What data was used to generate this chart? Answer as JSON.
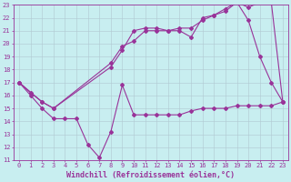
{
  "xlabel": "Windchill (Refroidissement éolien,°C)",
  "bg_color": "#c8eef0",
  "grid_color": "#b0c8d0",
  "line_color": "#993399",
  "xlim": [
    -0.5,
    23.5
  ],
  "ylim": [
    11,
    23
  ],
  "xticks": [
    0,
    1,
    2,
    3,
    4,
    5,
    6,
    7,
    8,
    9,
    10,
    11,
    12,
    13,
    14,
    15,
    16,
    17,
    18,
    19,
    20,
    21,
    22,
    23
  ],
  "yticks": [
    11,
    12,
    13,
    14,
    15,
    16,
    17,
    18,
    19,
    20,
    21,
    22,
    23
  ],
  "line1_x": [
    0,
    1,
    2,
    3,
    4,
    5,
    6,
    7,
    8,
    9,
    10,
    11,
    12,
    13,
    14,
    15,
    16,
    17,
    18,
    19,
    20,
    21,
    22,
    23
  ],
  "line1_y": [
    17,
    16,
    15,
    14.2,
    14.2,
    14.2,
    12.2,
    11.2,
    13.2,
    16.8,
    14.5,
    14.5,
    14.5,
    14.5,
    14.5,
    14.8,
    15,
    15,
    15,
    15.2,
    15.2,
    15.2,
    15.2,
    15.5
  ],
  "line2_x": [
    0,
    1,
    2,
    3,
    8,
    9,
    10,
    11,
    12,
    13,
    14,
    15,
    16,
    17,
    18,
    19,
    20,
    21,
    22,
    23
  ],
  "line2_y": [
    17,
    16.2,
    15.5,
    15.0,
    18.2,
    19.5,
    21.0,
    21.2,
    21.2,
    21.0,
    21.2,
    21.2,
    21.8,
    22.2,
    22.5,
    23.2,
    22.8,
    23.2,
    23.2,
    15.5
  ],
  "line3_x": [
    0,
    2,
    3,
    8,
    9,
    10,
    11,
    12,
    13,
    14,
    15,
    16,
    17,
    18,
    19,
    20,
    21,
    22,
    23
  ],
  "line3_y": [
    17,
    15.5,
    15.0,
    18.5,
    19.8,
    20.2,
    21.0,
    21.0,
    21.0,
    21.0,
    20.5,
    22.0,
    22.2,
    22.7,
    23.2,
    21.8,
    19.0,
    17.0,
    15.5
  ],
  "marker": "D",
  "markersize": 2,
  "linewidth": 0.8,
  "tick_fontsize": 5.0,
  "xlabel_fontsize": 6.0
}
